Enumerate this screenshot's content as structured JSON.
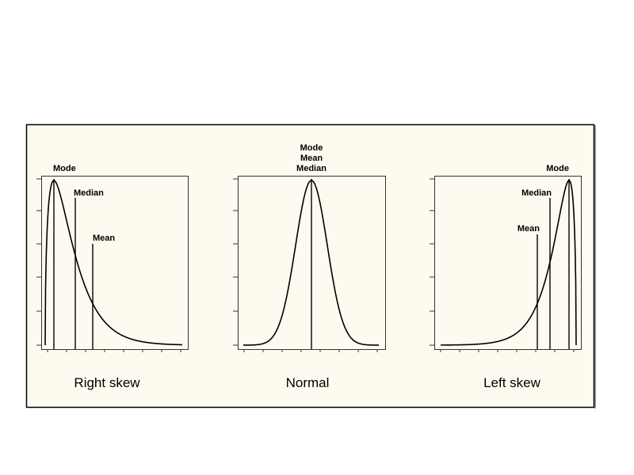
{
  "panels": [
    {
      "caption": "Right skew",
      "labels": [
        "Mode",
        "Median",
        "Mean"
      ]
    },
    {
      "caption": "Normal",
      "labels": [
        "Mode",
        "Mean",
        "Median"
      ]
    },
    {
      "caption": "Left skew",
      "labels": [
        "Mode",
        "Median",
        "Mean"
      ]
    }
  ]
}
